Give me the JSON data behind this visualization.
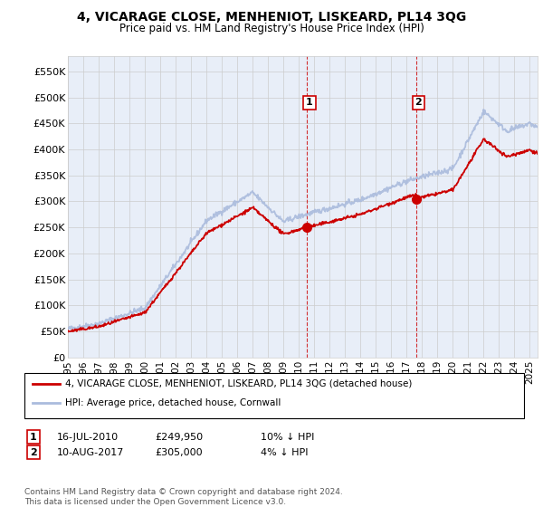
{
  "title": "4, VICARAGE CLOSE, MENHENIOT, LISKEARD, PL14 3QG",
  "subtitle": "Price paid vs. HM Land Registry's House Price Index (HPI)",
  "ylabel_ticks": [
    "£0",
    "£50K",
    "£100K",
    "£150K",
    "£200K",
    "£250K",
    "£300K",
    "£350K",
    "£400K",
    "£450K",
    "£500K",
    "£550K"
  ],
  "ytick_values": [
    0,
    50000,
    100000,
    150000,
    200000,
    250000,
    300000,
    350000,
    400000,
    450000,
    500000,
    550000
  ],
  "ylim": [
    0,
    580000
  ],
  "xlim_start": 1995.0,
  "xlim_end": 2025.5,
  "hpi_color": "#aabbdd",
  "price_color": "#cc0000",
  "sale1_x": 2010.54,
  "sale1_y": 249950,
  "sale1_label": "1",
  "sale1_date": "16-JUL-2010",
  "sale1_price": "£249,950",
  "sale1_hpi": "10% ↓ HPI",
  "sale2_x": 2017.61,
  "sale2_y": 305000,
  "sale2_label": "2",
  "sale2_date": "10-AUG-2017",
  "sale2_price": "£305,000",
  "sale2_hpi": "4% ↓ HPI",
  "legend_line1": "4, VICARAGE CLOSE, MENHENIOT, LISKEARD, PL14 3QG (detached house)",
  "legend_line2": "HPI: Average price, detached house, Cornwall",
  "footer": "Contains HM Land Registry data © Crown copyright and database right 2024.\nThis data is licensed under the Open Government Licence v3.0.",
  "xticks": [
    1995,
    1996,
    1997,
    1998,
    1999,
    2000,
    2001,
    2002,
    2003,
    2004,
    2005,
    2006,
    2007,
    2008,
    2009,
    2010,
    2011,
    2012,
    2013,
    2014,
    2015,
    2016,
    2017,
    2018,
    2019,
    2020,
    2021,
    2022,
    2023,
    2024,
    2025
  ],
  "background_color": "#ffffff",
  "plot_bg_color": "#e8eef8",
  "grid_color": "#cccccc"
}
